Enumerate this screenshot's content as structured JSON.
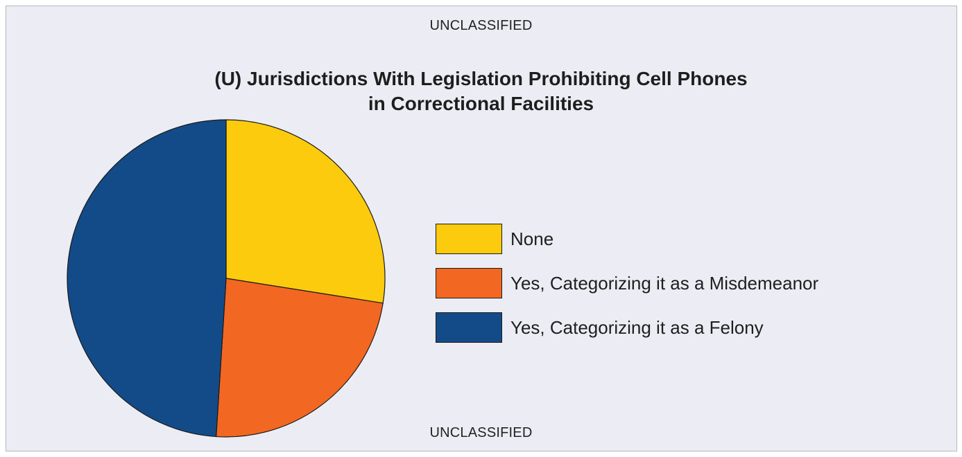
{
  "marking_top": "UNCLASSIFIED",
  "marking_bottom": "UNCLASSIFIED",
  "title_line1": "(U) Jurisdictions With Legislation Prohibiting Cell Phones",
  "title_line2": "in Correctional Facilities",
  "chart_data": {
    "type": "pie",
    "title": "(U) Jurisdictions With Legislation Prohibiting Cell Phones in Correctional Facilities",
    "slices": [
      {
        "label": "None",
        "value": 27.5,
        "color": "#fccb0e"
      },
      {
        "label": "Yes, Categorizing it as a Misdemeanor",
        "value": 23.5,
        "color": "#f26722"
      },
      {
        "label": "Yes, Categorizing it as a Felony",
        "value": 49.0,
        "color": "#124b87"
      }
    ],
    "start": "12 o'clock",
    "direction": "clockwise",
    "legend_position": "right"
  }
}
